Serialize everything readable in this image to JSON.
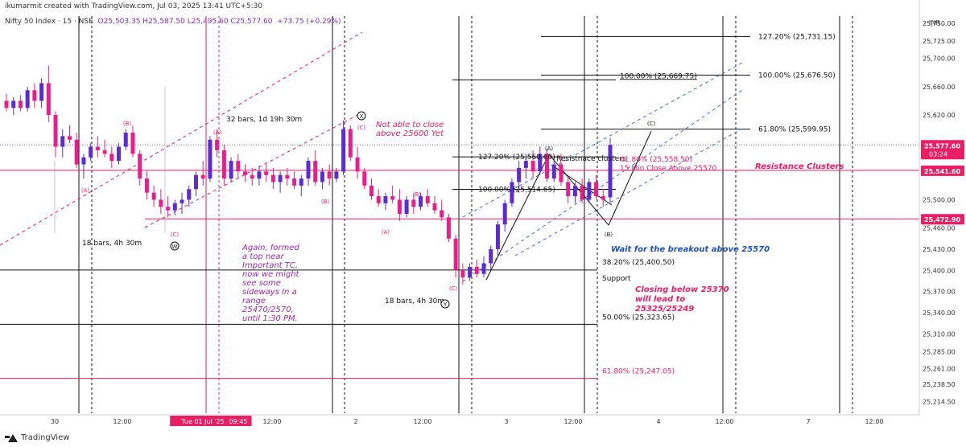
{
  "header": {
    "author_line": "ikumarmit created with TradingView.com, Jul 03, 2025 13:41 UTC+5:30",
    "symbol": "Nifty 50 Index · 15 · NSE",
    "ohlc": "O25,503.35  H25,587.50  L25,495.60  C25,577.60",
    "change": "+73.75 (+0.29%)"
  },
  "footer": {
    "brand": "TradingView",
    "logo_icon": "tradingview-logo-icon"
  },
  "colors": {
    "up": "#5b2bd6",
    "down": "#e91e8c",
    "black": "#111111",
    "blue_dash": "#3f6fd9",
    "pink": "#e91e63",
    "price_badge": "#e91e63",
    "current_badge": "#e91e63"
  },
  "chart_data": {
    "type": "candlestick",
    "currency": "INR",
    "ylim": [
      25200,
      25760
    ],
    "y_ticks": [
      "25,750.00",
      "25,725.00",
      "25,700.00",
      "25,660.00",
      "25,620.00",
      "25,577.60",
      "25,541.60",
      "25,500.00",
      "25,472.90",
      "25,460.00",
      "25,430.00",
      "25,400.00",
      "25,370.00",
      "25,340.00",
      "25,310.00",
      "25,285.00",
      "25,261.00",
      "25,238.50",
      "25,214.50"
    ],
    "y_tick_values": [
      25750,
      25725,
      25700,
      25660,
      25620,
      25577.6,
      25541.6,
      25500,
      25472.9,
      25460,
      25430,
      25400,
      25370,
      25340,
      25310,
      25285,
      25261,
      25238.5,
      25214.5
    ],
    "badges": [
      {
        "label": "25,577.60",
        "value": 25577.6,
        "sub": "03:24"
      },
      {
        "label": "25,541.60",
        "value": 25541.6,
        "sub": ""
      },
      {
        "label": "25,472.90",
        "value": 25472.9,
        "sub": ""
      }
    ],
    "x_ticks": [
      {
        "label": "30",
        "x": 68
      },
      {
        "label": "12:00",
        "x": 152
      },
      {
        "label": "Tue 01 Jul '25",
        "x": 252,
        "highlight": true
      },
      {
        "label": "09:45",
        "x": 296,
        "highlight": true
      },
      {
        "label": "12:00",
        "x": 338
      },
      {
        "label": "2",
        "x": 442
      },
      {
        "label": "12:00",
        "x": 525
      },
      {
        "label": "3",
        "x": 629
      },
      {
        "label": "12:00",
        "x": 712
      },
      {
        "label": "4",
        "x": 818
      },
      {
        "label": "12:00",
        "x": 900
      },
      {
        "label": "7",
        "x": 1004
      },
      {
        "label": "12:00",
        "x": 1086
      }
    ],
    "candles": [
      [
        25640,
        25650,
        25625,
        25630
      ],
      [
        25630,
        25645,
        25620,
        25640
      ],
      [
        25640,
        25648,
        25625,
        25630
      ],
      [
        25630,
        25660,
        25625,
        25655
      ],
      [
        25655,
        25665,
        25630,
        25640
      ],
      [
        25640,
        25672,
        25630,
        25665
      ],
      [
        25665,
        25690,
        25610,
        25620
      ],
      [
        25620,
        25625,
        25560,
        25575
      ],
      [
        25575,
        25600,
        25560,
        25590
      ],
      [
        25590,
        25605,
        25580,
        25585
      ],
      [
        25585,
        25595,
        25545,
        25550
      ],
      [
        25550,
        25565,
        25530,
        25560
      ],
      [
        25560,
        25580,
        25555,
        25575
      ],
      [
        25575,
        25590,
        25560,
        25570
      ],
      [
        25570,
        25585,
        25560,
        25565
      ],
      [
        25565,
        25575,
        25545,
        25555
      ],
      [
        25555,
        25580,
        25550,
        25575
      ],
      [
        25575,
        25600,
        25570,
        25595
      ],
      [
        25595,
        25605,
        25560,
        25565
      ],
      [
        25565,
        25570,
        25520,
        25530
      ],
      [
        25530,
        25540,
        25500,
        25510
      ],
      [
        25510,
        25520,
        25490,
        25500
      ],
      [
        25500,
        25515,
        25480,
        25490
      ],
      [
        25490,
        25505,
        25475,
        25485
      ],
      [
        25485,
        25500,
        25478,
        25495
      ],
      [
        25495,
        25510,
        25480,
        25500
      ],
      [
        25500,
        25520,
        25490,
        25515
      ],
      [
        25515,
        25540,
        25505,
        25535
      ],
      [
        25535,
        25555,
        25520,
        25530
      ],
      [
        25530,
        25590,
        25525,
        25585
      ],
      [
        25585,
        25600,
        25560,
        25570
      ],
      [
        25570,
        25578,
        25520,
        25530
      ],
      [
        25530,
        25560,
        25525,
        25555
      ],
      [
        25555,
        25565,
        25530,
        25540
      ],
      [
        25540,
        25550,
        25525,
        25535
      ],
      [
        25535,
        25545,
        25520,
        25530
      ],
      [
        25530,
        25548,
        25520,
        25540
      ],
      [
        25540,
        25550,
        25525,
        25535
      ],
      [
        25535,
        25545,
        25515,
        25525
      ],
      [
        25525,
        25540,
        25510,
        25535
      ],
      [
        25535,
        25545,
        25520,
        25530
      ],
      [
        25530,
        25540,
        25515,
        25520
      ],
      [
        25520,
        25535,
        25505,
        25530
      ],
      [
        25530,
        25560,
        25520,
        25555
      ],
      [
        25555,
        25570,
        25520,
        25525
      ],
      [
        25525,
        25545,
        25515,
        25540
      ],
      [
        25540,
        25550,
        25520,
        25530
      ],
      [
        25530,
        25545,
        25525,
        25540
      ],
      [
        25540,
        25612,
        25535,
        25600
      ],
      [
        25600,
        25605,
        25555,
        25560
      ],
      [
        25560,
        25575,
        25530,
        25540
      ],
      [
        25540,
        25545,
        25515,
        25520
      ],
      [
        25520,
        25530,
        25500,
        25505
      ],
      [
        25505,
        25515,
        25490,
        25495
      ],
      [
        25495,
        25510,
        25485,
        25505
      ],
      [
        25505,
        25520,
        25495,
        25500
      ],
      [
        25500,
        25515,
        25470,
        25480
      ],
      [
        25480,
        25505,
        25475,
        25500
      ],
      [
        25500,
        25510,
        25480,
        25490
      ],
      [
        25490,
        25510,
        25485,
        25505
      ],
      [
        25505,
        25515,
        25490,
        25495
      ],
      [
        25495,
        25505,
        25480,
        25485
      ],
      [
        25485,
        25500,
        25470,
        25475
      ],
      [
        25475,
        25480,
        25440,
        25445
      ],
      [
        25445,
        25450,
        25390,
        25400
      ],
      [
        25400,
        25410,
        25380,
        25390
      ],
      [
        25390,
        25410,
        25385,
        25405
      ],
      [
        25405,
        25415,
        25390,
        25395
      ],
      [
        25395,
        25420,
        25390,
        25410
      ],
      [
        25410,
        25435,
        25400,
        25430
      ],
      [
        25430,
        25470,
        25420,
        25465
      ],
      [
        25465,
        25500,
        25455,
        25495
      ],
      [
        25495,
        25530,
        25490,
        25525
      ],
      [
        25525,
        25555,
        25510,
        25545
      ],
      [
        25545,
        25565,
        25530,
        25555
      ],
      [
        25555,
        25570,
        25530,
        25540
      ],
      [
        25540,
        25575,
        25535,
        25565
      ],
      [
        25565,
        25572,
        25525,
        25530
      ],
      [
        25530,
        25560,
        25525,
        25550
      ],
      [
        25550,
        25565,
        25520,
        25525
      ],
      [
        25525,
        25535,
        25495,
        25505
      ],
      [
        25505,
        25525,
        25495,
        25520
      ],
      [
        25520,
        25530,
        25495,
        25500
      ],
      [
        25500,
        25530,
        25495,
        25525
      ],
      [
        25525,
        25535,
        25500,
        25505
      ],
      [
        25505,
        25515,
        25490,
        25500
      ],
      [
        25503.35,
        25587.5,
        25495.6,
        25577.6
      ]
    ],
    "annotations": [
      {
        "text": "(A)",
        "x": 106,
        "y": 239,
        "color": "#e91e63"
      },
      {
        "text": "(B)",
        "x": 158,
        "y": 156,
        "color": "#e91e63"
      },
      {
        "text": "(C)",
        "x": 217,
        "y": 294,
        "color": "#e91e63"
      },
      {
        "text": "(A)",
        "x": 270,
        "y": 167,
        "color": "#e91e63"
      },
      {
        "text": "(B)",
        "x": 404,
        "y": 253,
        "color": "#e91e63"
      },
      {
        "text": "(C)",
        "x": 449,
        "y": 161,
        "color": "#e91e63"
      },
      {
        "text": "(A)",
        "x": 479,
        "y": 291,
        "color": "#e91e63"
      },
      {
        "text": "(B)",
        "x": 518,
        "y": 244,
        "color": "#e91e63"
      },
      {
        "text": "(C)",
        "x": 563,
        "y": 361,
        "color": "#e91e63"
      },
      {
        "text": "(A)",
        "x": 682,
        "y": 187,
        "color": "#111111"
      },
      {
        "text": "(B)",
        "x": 756,
        "y": 294,
        "color": "#111111"
      },
      {
        "text": "(C)",
        "x": 809,
        "y": 156,
        "color": "#111111"
      },
      {
        "text": "18 bars, 4h 30m",
        "x": 102,
        "y": 305,
        "color": "#111111"
      },
      {
        "text": "32 bars, 1d 19h 30m",
        "x": 281,
        "y": 151,
        "color": "#111111"
      },
      {
        "text": "18 bars, 4h 30m",
        "x": 478,
        "y": 377,
        "color": "#111111"
      }
    ],
    "wave_labels": [
      {
        "text": "W",
        "x": 217,
        "y": 309
      },
      {
        "text": "X",
        "x": 449,
        "y": 147
      },
      {
        "text": "Y",
        "x": 553,
        "y": 381
      }
    ],
    "notes": {
      "note_top": [
        "Not able to close",
        "above 25600 Yet"
      ],
      "note_purple": [
        "Again, formed",
        "a top near",
        "Important TC,",
        "now we might",
        "see some",
        "sideways In a",
        "range",
        "25470/2570,",
        "until 1:30 PM."
      ],
      "note_closing": [
        "Closing below 25370",
        "will lead to",
        "25325/25249"
      ],
      "note_wait": "Wait for the breakout above 25570",
      "note_resistance": "Resistance Clusters",
      "note_resistance_small": "Resistnace clusters",
      "note_15min": "15 Min Close Above 25570",
      "note_support": "Support"
    },
    "fib_labels": {
      "f1": "127.20% (25,731.15)",
      "f2": "100.00% (25,669.75)",
      "f3": "100.00% (25,676.50)",
      "f4": "61.80% (25,599.95)",
      "f5": "127.20% (25,560.60)",
      "f6": "100.00% (25,514.65)",
      "f7": "61.80% (25,558.50)",
      "f8": "38.20% (25,400.50)",
      "f9": "50.00% (25,323.65)",
      "f10": "61.80% (25,247.05)"
    }
  }
}
